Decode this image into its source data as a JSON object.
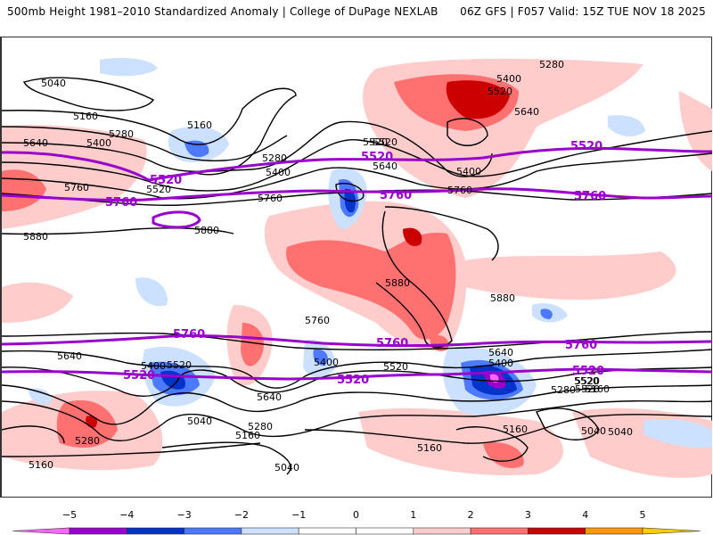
{
  "header": {
    "left_title": "500mb Height 1981–2010 Standardized Anomaly | College of DuPage NEXLAB",
    "right_title": "06Z GFS | F057 Valid: 15Z TUE NOV 18 2025"
  },
  "map": {
    "description": "Global 500mb geopotential height contours (dam*10 m) with standardized anomaly shading",
    "contour_color": "#000000",
    "highlight_color": "#9900cc",
    "contour_labels": [
      "5040",
      "5160",
      "5280",
      "5400",
      "5520",
      "5640",
      "5760",
      "5880",
      "5160",
      "5280",
      "5400",
      "5520",
      "5640",
      "5760",
      "5280",
      "5400",
      "5520",
      "5640",
      "5520",
      "5400",
      "5760",
      "5880",
      "5880",
      "5880",
      "5760",
      "5640",
      "5400",
      "5520",
      "5040",
      "5280",
      "5160",
      "5640",
      "5400",
      "5520",
      "5280",
      "5160",
      "5040",
      "5160",
      "5040",
      "5520",
      "5520",
      "5640",
      "5400",
      "5520",
      "5280",
      "5160",
      "5040",
      "5160"
    ],
    "highlight_labels": {
      "h5520": "5520",
      "h5760": "5760"
    },
    "anomaly_regions": [
      {
        "name": "greenland-ridge",
        "sign": "positive",
        "max_sigma": 3.5
      },
      {
        "name": "south-america-tropical-ridge",
        "sign": "positive",
        "max_sigma": 3
      },
      {
        "name": "east-pacific-positive",
        "sign": "positive",
        "max_sigma": 2
      },
      {
        "name": "us-west-trough",
        "sign": "negative",
        "max_sigma": -3.5
      },
      {
        "name": "north-pacific-trough",
        "sign": "negative",
        "max_sigma": -3
      },
      {
        "name": "south-atlantic-low",
        "sign": "negative",
        "max_sigma": -4.5
      },
      {
        "name": "southern-ocean-low-australia",
        "sign": "negative",
        "max_sigma": -3.5
      },
      {
        "name": "southern-ocean-ridge",
        "sign": "positive",
        "max_sigma": 3.5
      }
    ]
  },
  "colorbar": {
    "ticks": [
      "−5",
      "−4",
      "−3",
      "−2",
      "−1",
      "0",
      "1",
      "2",
      "3",
      "4",
      "5"
    ],
    "colors": [
      "#ff66ff",
      "#9900cc",
      "#0033cc",
      "#4d79ff",
      "#cce0ff",
      "#ffffff",
      "#ffcccc",
      "#ff7070",
      "#cc0000",
      "#ff9900",
      "#ffcc00"
    ]
  }
}
